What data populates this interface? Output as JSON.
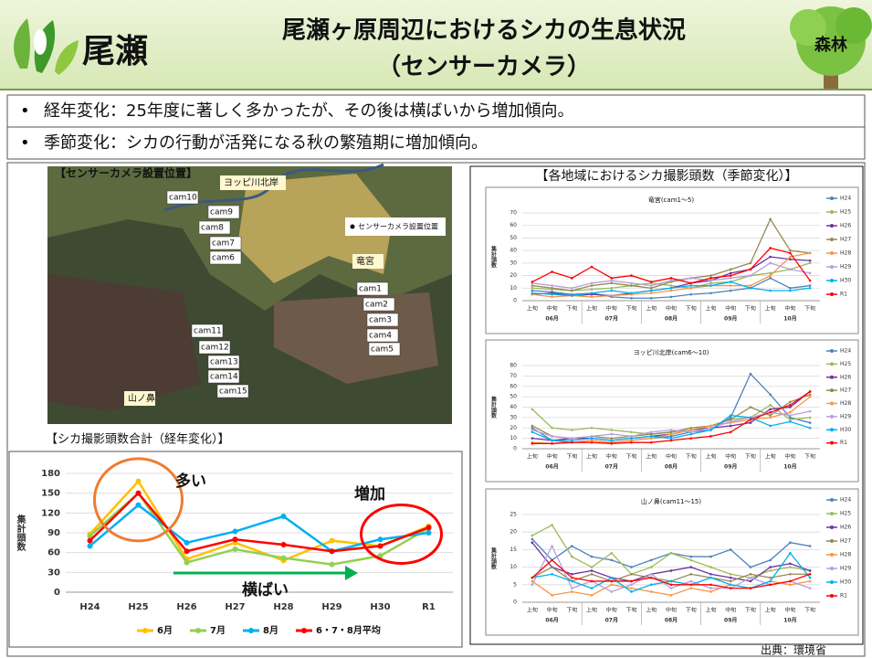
{
  "header": {
    "brand": "尾瀬",
    "title_line1": "尾瀬ヶ原周辺におけるシカの生息状況",
    "title_line2": "（センサーカメラ）",
    "badge": "森林"
  },
  "bullets": [
    "経年変化：25年度に著しく多かったが、その後は横ばいから増加傾向。",
    "季節変化：シカの行動が活発になる秋の繁殖期に増加傾向。"
  ],
  "map": {
    "title": "【センサーカメラ設置位置】",
    "legend": "センサーカメラ設置位置",
    "places": [
      "ヨッピ川北岸",
      "竜宮",
      "山ノ鼻"
    ],
    "cameras": [
      "cam1",
      "cam2",
      "cam3",
      "cam4",
      "cam5",
      "cam6",
      "cam7",
      "cam8",
      "cam9",
      "cam10",
      "cam11",
      "cam12",
      "cam13",
      "cam14",
      "cam15"
    ]
  },
  "right_heading": "【各地域におけるシカ撮影頭数（季節変化）】",
  "source": "出典：環境省",
  "chart_data": [
    {
      "type": "line",
      "title": "【シカ撮影頭数合計（経年変化）】",
      "y_label": "集計頭数",
      "categories": [
        "H24",
        "H25",
        "H26",
        "H27",
        "H28",
        "H29",
        "H30",
        "R1"
      ],
      "ylim": [
        0,
        180
      ],
      "yticks": [
        0,
        30,
        60,
        90,
        120,
        150,
        180
      ],
      "grid": true,
      "annotations": [
        "多い",
        "増加",
        "横ばい"
      ],
      "series": [
        {
          "name": "6月",
          "color": "#ffc000",
          "values": [
            88,
            168,
            50,
            75,
            48,
            78,
            70,
            100
          ]
        },
        {
          "name": "7月",
          "color": "#92d050",
          "values": [
            85,
            150,
            45,
            65,
            52,
            42,
            55,
            97
          ]
        },
        {
          "name": "8月",
          "color": "#00b0f0",
          "values": [
            70,
            132,
            75,
            92,
            115,
            62,
            80,
            90
          ]
        },
        {
          "name": "6・7・8月平均",
          "color": "#ff0000",
          "values": [
            78,
            150,
            62,
            80,
            72,
            62,
            70,
            98
          ]
        }
      ]
    },
    {
      "type": "line",
      "title": "竜宮(cam1～5)",
      "y_label": "集計頭数",
      "categories": [
        "上旬",
        "中旬",
        "下旬",
        "上旬",
        "中旬",
        "下旬",
        "上旬",
        "中旬",
        "下旬",
        "上旬",
        "中旬",
        "下旬",
        "上旬",
        "中旬",
        "下旬"
      ],
      "x_groups": [
        "06月",
        "07月",
        "08月",
        "09月",
        "10月"
      ],
      "ylim": [
        0,
        70
      ],
      "yticks": [
        0,
        10,
        20,
        30,
        40,
        50,
        60,
        70
      ],
      "grid": true,
      "series": [
        {
          "name": "H24",
          "color": "#4f81bd",
          "values": [
            8,
            7,
            5,
            6,
            3,
            2,
            2,
            3,
            5,
            6,
            8,
            10,
            18,
            10,
            12
          ]
        },
        {
          "name": "H25",
          "color": "#9bbb59",
          "values": [
            10,
            9,
            8,
            9,
            10,
            12,
            14,
            12,
            10,
            14,
            15,
            20,
            22,
            25,
            30
          ]
        },
        {
          "name": "H26",
          "color": "#7030a0",
          "values": [
            5,
            6,
            4,
            5,
            4,
            6,
            8,
            10,
            14,
            16,
            22,
            25,
            35,
            33,
            32
          ]
        },
        {
          "name": "H27",
          "color": "#948a54",
          "values": [
            12,
            10,
            8,
            12,
            14,
            12,
            10,
            15,
            18,
            20,
            25,
            30,
            65,
            40,
            38
          ]
        },
        {
          "name": "H28",
          "color": "#f79646",
          "values": [
            5,
            3,
            4,
            3,
            4,
            5,
            6,
            8,
            10,
            12,
            12,
            12,
            20,
            35,
            38
          ]
        },
        {
          "name": "H29",
          "color": "#b7a0dc",
          "values": [
            14,
            12,
            10,
            14,
            16,
            14,
            12,
            16,
            18,
            16,
            18,
            20,
            30,
            25,
            22
          ]
        },
        {
          "name": "H30",
          "color": "#00b0f0",
          "values": [
            6,
            5,
            4,
            6,
            8,
            6,
            8,
            10,
            12,
            12,
            15,
            10,
            8,
            8,
            10
          ]
        },
        {
          "name": "R1",
          "color": "#ff0000",
          "values": [
            15,
            23,
            18,
            27,
            18,
            20,
            15,
            18,
            14,
            18,
            20,
            25,
            42,
            38,
            16
          ]
        }
      ]
    },
    {
      "type": "line",
      "title": "ヨッピ川北岸(cam6～10)",
      "y_label": "集計頭数",
      "categories": [
        "上旬",
        "中旬",
        "下旬",
        "上旬",
        "中旬",
        "下旬",
        "上旬",
        "中旬",
        "下旬",
        "上旬",
        "中旬",
        "下旬",
        "上旬",
        "中旬",
        "下旬"
      ],
      "x_groups": [
        "06月",
        "07月",
        "08月",
        "09月",
        "10月"
      ],
      "ylim": [
        0,
        80
      ],
      "yticks": [
        0,
        10,
        20,
        30,
        40,
        50,
        60,
        70,
        80
      ],
      "grid": true,
      "series": [
        {
          "name": "H24",
          "color": "#4f81bd",
          "values": [
            20,
            8,
            6,
            8,
            6,
            8,
            10,
            12,
            16,
            18,
            30,
            72,
            52,
            30,
            25
          ]
        },
        {
          "name": "H25",
          "color": "#9bbb59",
          "values": [
            38,
            20,
            18,
            20,
            18,
            16,
            14,
            16,
            18,
            22,
            28,
            30,
            42,
            28,
            30
          ]
        },
        {
          "name": "H26",
          "color": "#7030a0",
          "values": [
            10,
            8,
            10,
            10,
            8,
            10,
            12,
            14,
            18,
            20,
            22,
            25,
            38,
            40,
            55
          ]
        },
        {
          "name": "H27",
          "color": "#948a54",
          "values": [
            22,
            12,
            10,
            12,
            10,
            12,
            14,
            16,
            20,
            22,
            28,
            40,
            32,
            45,
            52
          ]
        },
        {
          "name": "H28",
          "color": "#f79646",
          "values": [
            6,
            5,
            6,
            8,
            6,
            8,
            10,
            14,
            18,
            22,
            25,
            28,
            30,
            35,
            50
          ]
        },
        {
          "name": "H29",
          "color": "#b7a0dc",
          "values": [
            18,
            12,
            10,
            12,
            14,
            12,
            16,
            18,
            16,
            20,
            26,
            30,
            35,
            32,
            36
          ]
        },
        {
          "name": "H30",
          "color": "#00b0f0",
          "values": [
            16,
            8,
            8,
            10,
            8,
            10,
            12,
            10,
            14,
            18,
            32,
            30,
            22,
            26,
            20
          ]
        },
        {
          "name": "R1",
          "color": "#ff0000",
          "values": [
            5,
            5,
            6,
            6,
            5,
            6,
            6,
            8,
            10,
            12,
            16,
            28,
            35,
            42,
            55
          ]
        }
      ]
    },
    {
      "type": "line",
      "title": "山ノ鼻(cam11～15)",
      "y_label": "集計頭数",
      "categories": [
        "上旬",
        "中旬",
        "下旬",
        "上旬",
        "中旬",
        "下旬",
        "上旬",
        "中旬",
        "下旬",
        "上旬",
        "中旬",
        "下旬",
        "上旬",
        "中旬",
        "下旬"
      ],
      "x_groups": [
        "06月",
        "07月",
        "08月",
        "09月",
        "10月"
      ],
      "ylim": [
        0,
        25
      ],
      "yticks": [
        0,
        5,
        10,
        15,
        20,
        25
      ],
      "grid": true,
      "series": [
        {
          "name": "H24",
          "color": "#4f81bd",
          "values": [
            18,
            12,
            16,
            13,
            12,
            10,
            12,
            14,
            13,
            13,
            15,
            10,
            12,
            17,
            16
          ]
        },
        {
          "name": "H25",
          "color": "#9bbb59",
          "values": [
            19,
            22,
            13,
            10,
            14,
            8,
            10,
            14,
            12,
            10,
            8,
            7,
            9,
            10,
            9
          ]
        },
        {
          "name": "H26",
          "color": "#7030a0",
          "values": [
            17,
            10,
            8,
            9,
            7,
            6,
            8,
            9,
            10,
            8,
            7,
            6,
            10,
            11,
            9
          ]
        },
        {
          "name": "H27",
          "color": "#948a54",
          "values": [
            7,
            10,
            6,
            8,
            6,
            8,
            7,
            6,
            8,
            7,
            6,
            8,
            7,
            8,
            8
          ]
        },
        {
          "name": "H28",
          "color": "#f79646",
          "values": [
            6,
            2,
            3,
            2,
            5,
            4,
            3,
            2,
            4,
            3,
            5,
            4,
            6,
            5,
            6
          ]
        },
        {
          "name": "H29",
          "color": "#b7a0dc",
          "values": [
            5,
            16,
            4,
            6,
            3,
            5,
            8,
            4,
            6,
            4,
            4,
            7,
            5,
            6,
            4
          ]
        },
        {
          "name": "H30",
          "color": "#00b0f0",
          "values": [
            7,
            8,
            6,
            4,
            7,
            3,
            5,
            6,
            5,
            7,
            5,
            4,
            6,
            14,
            7
          ]
        },
        {
          "name": "R1",
          "color": "#ff0000",
          "values": [
            7,
            12,
            7,
            6,
            6,
            6,
            7,
            5,
            5,
            5,
            4,
            4,
            5,
            6,
            8
          ]
        }
      ]
    }
  ]
}
